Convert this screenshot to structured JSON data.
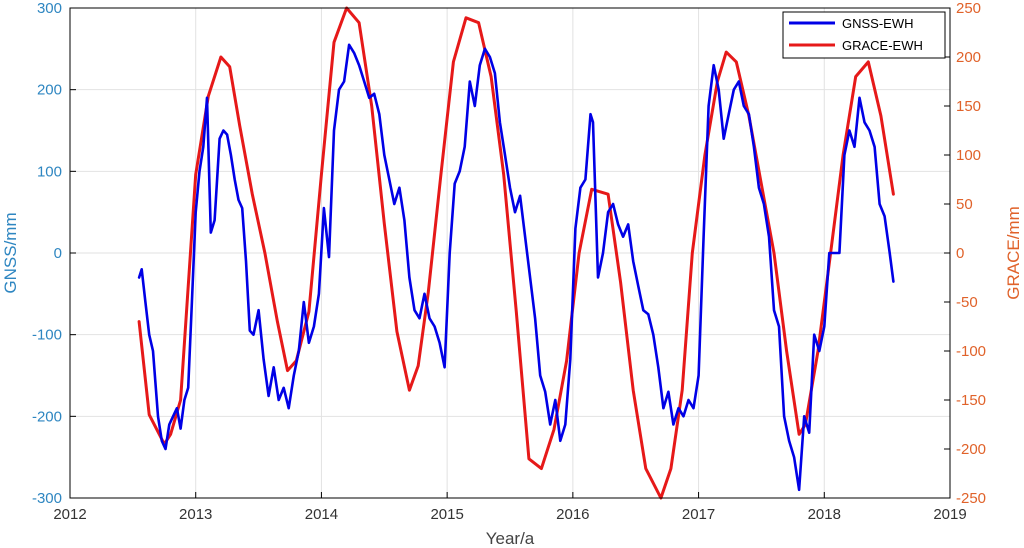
{
  "chart_data": {
    "type": "line",
    "xlabel": "Year/a",
    "ylabel_left": "GNSS/mm",
    "ylabel_right": "GRACE/mm",
    "xlim": [
      2012,
      2019
    ],
    "ylim_left": [
      -300,
      300
    ],
    "ylim_right": [
      -250,
      250
    ],
    "x_ticks": [
      "2012",
      "2013",
      "2014",
      "2015",
      "2016",
      "2017",
      "2018",
      "2019"
    ],
    "y_left_ticks": [
      "300",
      "200",
      "100",
      "0",
      "-100",
      "-200",
      "-300"
    ],
    "y_right_ticks": [
      "250",
      "200",
      "150",
      "100",
      "50",
      "0",
      "-50",
      "-100",
      "-150",
      "-200",
      "-250"
    ],
    "grid": true,
    "legend_position": "top-right",
    "colors": {
      "left_axis": "#2e86c1",
      "right_axis": "#e0622a",
      "gnss": "#0000e6",
      "grace": "#e61919",
      "grid": "#e2e2e2"
    },
    "series": [
      {
        "name": "GNSS-EWH",
        "axis": "left",
        "x": [
          2012.55,
          2012.57,
          2012.6,
          2012.63,
          2012.66,
          2012.7,
          2012.73,
          2012.76,
          2012.79,
          2012.82,
          2012.85,
          2012.88,
          2012.91,
          2012.94,
          2012.97,
          2013.0,
          2013.03,
          2013.06,
          2013.09,
          2013.12,
          2013.15,
          2013.17,
          2013.19,
          2013.22,
          2013.25,
          2013.28,
          2013.31,
          2013.34,
          2013.37,
          2013.4,
          2013.43,
          2013.46,
          2013.5,
          2013.54,
          2013.58,
          2013.62,
          2013.66,
          2013.7,
          2013.74,
          2013.78,
          2013.82,
          2013.86,
          2013.9,
          2013.94,
          2013.98,
          2014.02,
          2014.06,
          2014.1,
          2014.14,
          2014.18,
          2014.22,
          2014.26,
          2014.3,
          2014.34,
          2014.38,
          2014.42,
          2014.46,
          2014.5,
          2014.54,
          2014.58,
          2014.62,
          2014.66,
          2014.7,
          2014.74,
          2014.78,
          2014.82,
          2014.86,
          2014.9,
          2014.94,
          2014.98,
          2015.02,
          2015.06,
          2015.1,
          2015.14,
          2015.18,
          2015.22,
          2015.26,
          2015.3,
          2015.34,
          2015.38,
          2015.42,
          2015.46,
          2015.5,
          2015.54,
          2015.58,
          2015.62,
          2015.66,
          2015.7,
          2015.74,
          2015.78,
          2015.82,
          2015.86,
          2015.9,
          2015.94,
          2015.98,
          2016.02,
          2016.06,
          2016.1,
          2016.14,
          2016.16,
          2016.2,
          2016.24,
          2016.28,
          2016.32,
          2016.36,
          2016.4,
          2016.44,
          2016.48,
          2016.52,
          2016.56,
          2016.6,
          2016.64,
          2016.68,
          2016.72,
          2016.76,
          2016.8,
          2016.84,
          2016.88,
          2016.92,
          2016.96,
          2017.0,
          2017.04,
          2017.08,
          2017.12,
          2017.16,
          2017.2,
          2017.24,
          2017.28,
          2017.32,
          2017.36,
          2017.4,
          2017.44,
          2017.48,
          2017.52,
          2017.56,
          2017.6,
          2017.64,
          2017.68,
          2017.72,
          2017.76,
          2017.8,
          2017.84,
          2017.88,
          2017.92,
          2017.96,
          2018.0,
          2018.04,
          2018.08,
          2018.12,
          2018.16,
          2018.2,
          2018.24,
          2018.28,
          2018.32,
          2018.36,
          2018.4,
          2018.44,
          2018.48,
          2018.52,
          2018.55
        ],
        "values": [
          -30,
          -20,
          -60,
          -100,
          -120,
          -200,
          -230,
          -240,
          -210,
          -200,
          -190,
          -215,
          -180,
          -165,
          -60,
          50,
          100,
          130,
          190,
          25,
          40,
          90,
          140,
          150,
          145,
          120,
          90,
          65,
          55,
          -10,
          -95,
          -100,
          -70,
          -130,
          -175,
          -140,
          -180,
          -165,
          -190,
          -150,
          -120,
          -60,
          -110,
          -90,
          -50,
          55,
          -5,
          150,
          200,
          210,
          255,
          245,
          230,
          210,
          190,
          195,
          170,
          120,
          90,
          60,
          80,
          40,
          -30,
          -70,
          -80,
          -50,
          -80,
          -90,
          -110,
          -140,
          0,
          85,
          100,
          130,
          210,
          180,
          230,
          250,
          240,
          220,
          160,
          120,
          80,
          50,
          70,
          20,
          -30,
          -80,
          -150,
          -170,
          -210,
          -180,
          -230,
          -210,
          -130,
          30,
          80,
          90,
          170,
          160,
          -30,
          0,
          50,
          60,
          35,
          20,
          35,
          -10,
          -40,
          -70,
          -75,
          -100,
          -140,
          -190,
          -170,
          -210,
          -190,
          -200,
          -180,
          -190,
          -150,
          20,
          180,
          230,
          200,
          140,
          170,
          200,
          210,
          180,
          170,
          130,
          80,
          60,
          20,
          -70,
          -90,
          -200,
          -230,
          -250,
          -290,
          -200,
          -220,
          -100,
          -120,
          -90,
          0,
          0,
          0,
          120,
          150,
          130,
          190,
          160,
          150,
          130,
          60,
          45,
          0,
          -35
        ]
      },
      {
        "name": "GRACE-EWH",
        "axis": "right",
        "x": [
          2012.55,
          2012.63,
          2012.75,
          2012.8,
          2012.88,
          2013.0,
          2013.1,
          2013.2,
          2013.27,
          2013.35,
          2013.45,
          2013.55,
          2013.65,
          2013.73,
          2013.8,
          2013.9,
          2014.0,
          2014.1,
          2014.2,
          2014.3,
          2014.4,
          2014.5,
          2014.6,
          2014.7,
          2014.77,
          2014.85,
          2014.95,
          2015.05,
          2015.15,
          2015.25,
          2015.35,
          2015.45,
          2015.55,
          2015.65,
          2015.75,
          2015.85,
          2015.95,
          2016.05,
          2016.15,
          2016.28,
          2016.38,
          2016.48,
          2016.58,
          2016.7,
          2016.78,
          2016.87,
          2016.95,
          2017.05,
          2017.15,
          2017.22,
          2017.3,
          2017.4,
          2017.5,
          2017.6,
          2017.7,
          2017.8,
          2017.85,
          2017.95,
          2018.05,
          2018.15,
          2018.25,
          2018.35,
          2018.45,
          2018.55
        ],
        "values": [
          -70,
          -165,
          -195,
          -185,
          -150,
          80,
          160,
          200,
          190,
          130,
          60,
          0,
          -70,
          -120,
          -110,
          -60,
          80,
          215,
          250,
          235,
          150,
          30,
          -80,
          -140,
          -115,
          -40,
          80,
          195,
          240,
          235,
          180,
          80,
          -60,
          -210,
          -220,
          -180,
          -110,
          0,
          65,
          60,
          -30,
          -140,
          -220,
          -250,
          -220,
          -140,
          0,
          100,
          175,
          205,
          195,
          140,
          70,
          0,
          -100,
          -185,
          -175,
          -100,
          0,
          100,
          180,
          195,
          140,
          60
        ]
      }
    ]
  }
}
